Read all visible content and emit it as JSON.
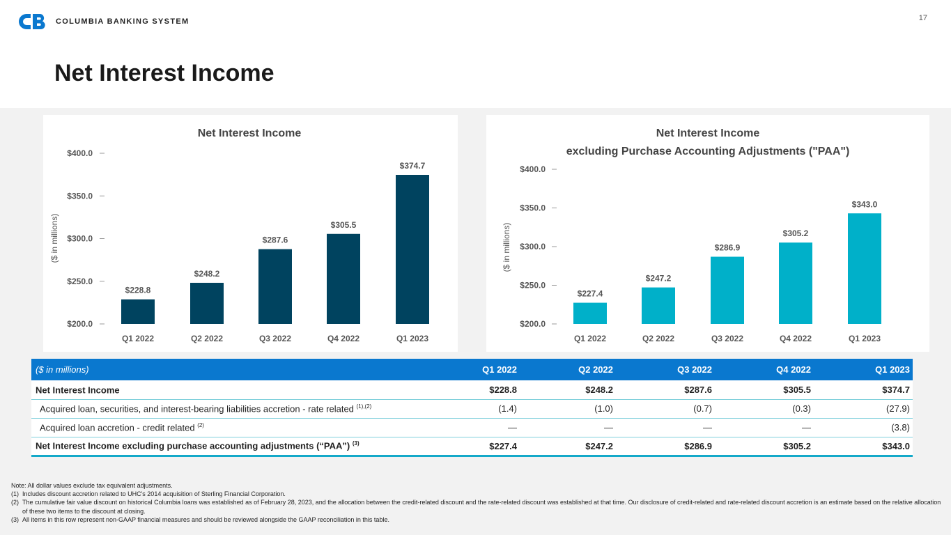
{
  "header": {
    "company": "COLUMBIA BANKING SYSTEM",
    "page_number": "17",
    "title": "Net Interest Income"
  },
  "colors": {
    "dark_bar": "#00435f",
    "light_bar": "#00b0c9",
    "table_header": "#0a78cf",
    "logo": "#0a78cf"
  },
  "chart_data": [
    {
      "type": "bar",
      "title": "Net Interest Income",
      "subtitle": "",
      "ylabel": "($ in millions)",
      "categories": [
        "Q1 2022",
        "Q2 2022",
        "Q3 2022",
        "Q4 2022",
        "Q1 2023"
      ],
      "values": [
        228.8,
        248.2,
        287.6,
        305.5,
        374.7
      ],
      "data_labels": [
        "$228.8",
        "$248.2",
        "$287.6",
        "$305.5",
        "$374.7"
      ],
      "ylim": [
        200,
        400
      ],
      "yticks": [
        "$200.0",
        "$250.0",
        "$300.0",
        "$350.0",
        "$400.0"
      ],
      "color": "#00435f"
    },
    {
      "type": "bar",
      "title": "Net Interest Income",
      "subtitle": "excluding Purchase Accounting Adjustments (\"PAA\")",
      "ylabel": "($ in millions)",
      "categories": [
        "Q1 2022",
        "Q2 2022",
        "Q3 2022",
        "Q4 2022",
        "Q1 2023"
      ],
      "values": [
        227.4,
        247.2,
        286.9,
        305.2,
        343.0
      ],
      "data_labels": [
        "$227.4",
        "$247.2",
        "$286.9",
        "$305.2",
        "$343.0"
      ],
      "ylim": [
        200,
        400
      ],
      "yticks": [
        "$200.0",
        "$250.0",
        "$300.0",
        "$350.0",
        "$400.0"
      ],
      "color": "#00b0c9"
    }
  ],
  "table": {
    "unit_label": "($ in millions)",
    "columns": [
      "Q1 2022",
      "Q2 2022",
      "Q3 2022",
      "Q4 2022",
      "Q1 2023"
    ],
    "rows": [
      {
        "label": "Net Interest Income",
        "sup": "",
        "values": [
          "$228.8",
          "$248.2",
          "$287.6",
          "$305.5",
          "$374.7"
        ]
      },
      {
        "label": "Acquired loan, securities, and interest-bearing liabilities accretion - rate related",
        "sup": "(1),(2)",
        "values": [
          "(1.4)",
          "(1.0)",
          "(0.7)",
          "(0.3)",
          "(27.9)"
        ]
      },
      {
        "label": "Acquired loan accretion - credit related",
        "sup": "(2)",
        "values": [
          "—",
          "—",
          "—",
          "—",
          "(3.8)"
        ]
      },
      {
        "label": "Net Interest Income excluding purchase accounting adjustments (“PAA”)",
        "sup": "(3)",
        "values": [
          "$227.4",
          "$247.2",
          "$286.9",
          "$305.2",
          "$343.0"
        ]
      }
    ]
  },
  "notes": {
    "note": "Note: All dollar values exclude tax equivalent adjustments.",
    "items": [
      {
        "key": "(1)",
        "text": "Includes discount accretion related to UHC's 2014 acquisition of Sterling Financial Corporation."
      },
      {
        "key": "(2)",
        "text": "The cumulative fair value discount on historical Columbia loans was established as of February 28, 2023, and the allocation between the credit-related discount and the rate-related discount was established at that time. Our disclosure of credit-related and rate-related discount accretion is an estimate based on the relative allocation of these two items to the discount at closing."
      },
      {
        "key": "(3)",
        "text": "All items in this row represent non-GAAP financial measures and should be reviewed alongside the GAAP reconciliation in this table."
      }
    ]
  }
}
